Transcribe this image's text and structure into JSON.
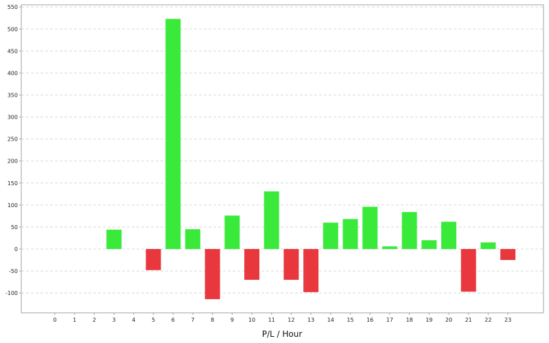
{
  "chart_data": {
    "type": "bar",
    "title": "",
    "xlabel": "P/L / Hour",
    "ylabel": "",
    "categories": [
      "0",
      "1",
      "2",
      "3",
      "4",
      "5",
      "6",
      "7",
      "8",
      "9",
      "10",
      "11",
      "12",
      "13",
      "14",
      "15",
      "16",
      "17",
      "18",
      "19",
      "20",
      "21",
      "22",
      "23"
    ],
    "values": [
      0,
      0,
      0,
      44,
      0,
      -48,
      523,
      45,
      -114,
      76,
      -70,
      131,
      -70,
      -98,
      60,
      68,
      96,
      6,
      84,
      20,
      62,
      -97,
      15,
      -25
    ],
    "ylim": [
      -145,
      555
    ],
    "yticks": [
      -100,
      -50,
      0,
      50,
      100,
      150,
      200,
      250,
      300,
      350,
      400,
      450,
      500,
      550
    ],
    "grid": true,
    "colors": {
      "positive": "#3aea3a",
      "negative": "#e8383d",
      "grid": "#d8d8d8",
      "axis": "#a0a0a0"
    }
  }
}
